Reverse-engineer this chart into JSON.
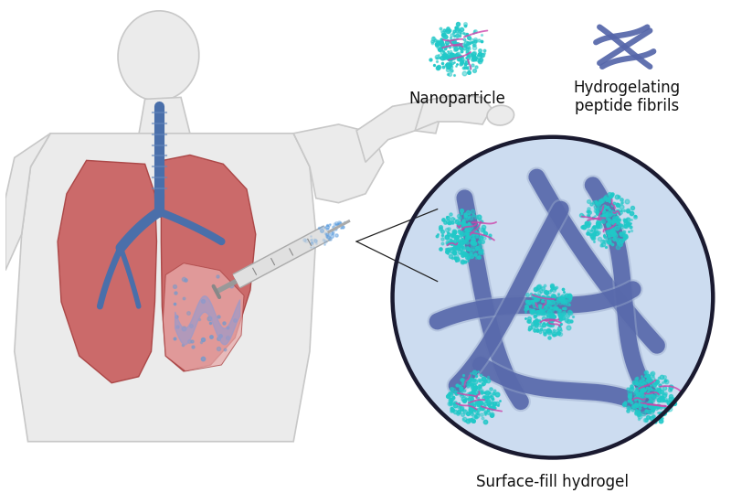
{
  "bg_color": "#ffffff",
  "body_fill": "#ebebeb",
  "body_stroke": "#c8c8c8",
  "lung_left_fill": "#c95f5f",
  "lung_right_fill": "#c95f5f",
  "lung_stroke": "#a84040",
  "trachea_fill": "#4a6faa",
  "bronchi_fill": "#4a6faa",
  "circle_fill": "#ccdcf0",
  "circle_stroke": "#1a1a30",
  "fibril_color": "#5566aa",
  "fibril_light": "#99aacc",
  "np_cyan": "#20c8c8",
  "np_pink": "#cc44aa",
  "label_nanoparticle": "Nanoparticle",
  "label_hydrogel": "Hydrogelating\npeptide fibrils",
  "label_surface": "Surface-fill hydrogel",
  "font_size_labels": 12,
  "title_color": "#111111",
  "spray_color": "#5599dd",
  "syringe_fill": "#e0e0e0",
  "syringe_stroke": "#aaaaaa",
  "affected_fill": "#e8aaaa",
  "wave_color": "#9999cc",
  "line_color": "#222222"
}
